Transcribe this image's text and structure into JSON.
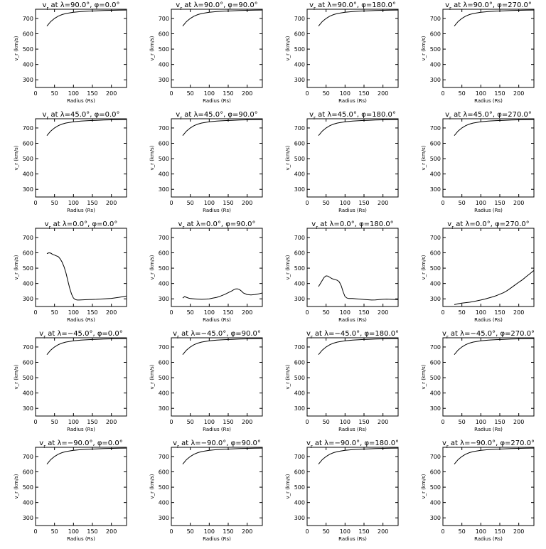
{
  "chart_data": [
    {
      "type": "line",
      "title": "v<sub>r</sub> at λ=90.0°, φ=0.0°",
      "title_parts": {
        "var": "v",
        "sub": "r",
        "rest": " at λ=90.0°, φ=0.0°"
      },
      "xlabel": "Radius (Rs)",
      "ylabel": "v_r (km/s)",
      "xlim": [
        0,
        240
      ],
      "ylim": [
        250,
        760
      ],
      "xticks": [
        0,
        50,
        100,
        150,
        200
      ],
      "yticks": [
        300,
        400,
        500,
        600,
        700
      ],
      "x": [
        30,
        40,
        50,
        60,
        70,
        80,
        100,
        120,
        140,
        160,
        180,
        200,
        220,
        240
      ],
      "y": [
        650,
        680,
        700,
        715,
        725,
        732,
        740,
        745,
        748,
        750,
        752,
        753,
        754,
        755
      ]
    },
    {
      "type": "line",
      "title_parts": {
        "var": "v",
        "sub": "r",
        "rest": " at λ=90.0°, φ=90.0°"
      },
      "xlabel": "Radius (Rs)",
      "ylabel": "v_r (km/s)",
      "xlim": [
        0,
        240
      ],
      "ylim": [
        250,
        760
      ],
      "xticks": [
        0,
        50,
        100,
        150,
        200
      ],
      "yticks": [
        300,
        400,
        500,
        600,
        700
      ],
      "x": [
        30,
        40,
        50,
        60,
        70,
        80,
        100,
        120,
        140,
        160,
        180,
        200,
        220,
        240
      ],
      "y": [
        650,
        680,
        700,
        715,
        725,
        732,
        740,
        745,
        748,
        750,
        752,
        753,
        754,
        755
      ]
    },
    {
      "type": "line",
      "title_parts": {
        "var": "v",
        "sub": "r",
        "rest": " at λ=90.0°, φ=180.0°"
      },
      "xlabel": "Radius (Rs)",
      "ylabel": "v_r (km/s)",
      "xlim": [
        0,
        240
      ],
      "ylim": [
        250,
        760
      ],
      "xticks": [
        0,
        50,
        100,
        150,
        200
      ],
      "yticks": [
        300,
        400,
        500,
        600,
        700
      ],
      "x": [
        30,
        40,
        50,
        60,
        70,
        80,
        100,
        120,
        140,
        160,
        180,
        200,
        220,
        240
      ],
      "y": [
        650,
        680,
        700,
        715,
        725,
        732,
        740,
        745,
        748,
        750,
        752,
        753,
        754,
        755
      ]
    },
    {
      "type": "line",
      "title_parts": {
        "var": "v",
        "sub": "r",
        "rest": " at λ=90.0°, φ=270.0°"
      },
      "xlabel": "Radius (Rs)",
      "ylabel": "v_r (km/s)",
      "xlim": [
        0,
        240
      ],
      "ylim": [
        250,
        760
      ],
      "xticks": [
        0,
        50,
        100,
        150,
        200
      ],
      "yticks": [
        300,
        400,
        500,
        600,
        700
      ],
      "x": [
        30,
        40,
        50,
        60,
        70,
        80,
        100,
        120,
        140,
        160,
        180,
        200,
        220,
        240
      ],
      "y": [
        650,
        680,
        700,
        715,
        725,
        732,
        740,
        745,
        748,
        750,
        752,
        753,
        754,
        755
      ]
    },
    {
      "type": "line",
      "title_parts": {
        "var": "v",
        "sub": "r",
        "rest": " at λ=45.0°, φ=0.0°"
      },
      "xlabel": "Radius (Rs)",
      "ylabel": "v_r (km/s)",
      "xlim": [
        0,
        240
      ],
      "ylim": [
        250,
        760
      ],
      "xticks": [
        0,
        50,
        100,
        150,
        200
      ],
      "yticks": [
        300,
        400,
        500,
        600,
        700
      ],
      "x": [
        30,
        40,
        50,
        60,
        70,
        80,
        100,
        120,
        140,
        160,
        180,
        200,
        220,
        240
      ],
      "y": [
        650,
        680,
        700,
        715,
        725,
        732,
        740,
        745,
        748,
        750,
        752,
        753,
        754,
        755
      ]
    },
    {
      "type": "line",
      "title_parts": {
        "var": "v",
        "sub": "r",
        "rest": " at λ=45.0°, φ=90.0°"
      },
      "xlabel": "Radius (Rs)",
      "ylabel": "v_r (km/s)",
      "xlim": [
        0,
        240
      ],
      "ylim": [
        250,
        760
      ],
      "xticks": [
        0,
        50,
        100,
        150,
        200
      ],
      "yticks": [
        300,
        400,
        500,
        600,
        700
      ],
      "x": [
        30,
        40,
        50,
        60,
        70,
        80,
        100,
        120,
        140,
        160,
        180,
        200,
        220,
        240
      ],
      "y": [
        650,
        680,
        700,
        715,
        725,
        732,
        740,
        745,
        748,
        750,
        752,
        753,
        754,
        755
      ]
    },
    {
      "type": "line",
      "title_parts": {
        "var": "v",
        "sub": "r",
        "rest": " at λ=45.0°, φ=180.0°"
      },
      "xlabel": "Radius (Rs)",
      "ylabel": "v_r (km/s)",
      "xlim": [
        0,
        240
      ],
      "ylim": [
        250,
        760
      ],
      "xticks": [
        0,
        50,
        100,
        150,
        200
      ],
      "yticks": [
        300,
        400,
        500,
        600,
        700
      ],
      "x": [
        30,
        40,
        50,
        60,
        70,
        80,
        100,
        120,
        140,
        160,
        180,
        200,
        220,
        240
      ],
      "y": [
        650,
        680,
        700,
        715,
        725,
        732,
        740,
        745,
        748,
        750,
        752,
        753,
        754,
        755
      ]
    },
    {
      "type": "line",
      "title_parts": {
        "var": "v",
        "sub": "r",
        "rest": " at λ=45.0°, φ=270.0°"
      },
      "xlabel": "Radius (Rs)",
      "ylabel": "v_r (km/s)",
      "xlim": [
        0,
        240
      ],
      "ylim": [
        250,
        760
      ],
      "xticks": [
        0,
        50,
        100,
        150,
        200
      ],
      "yticks": [
        300,
        400,
        500,
        600,
        700
      ],
      "x": [
        30,
        40,
        50,
        60,
        70,
        80,
        100,
        120,
        140,
        160,
        180,
        200,
        220,
        240
      ],
      "y": [
        650,
        680,
        700,
        715,
        725,
        732,
        740,
        745,
        748,
        750,
        752,
        753,
        754,
        755
      ]
    },
    {
      "type": "line",
      "title_parts": {
        "var": "v",
        "sub": "r",
        "rest": " at λ=0.0°, φ=0.0°"
      },
      "xlabel": "Radius (Rs)",
      "ylabel": "v_r (km/s)",
      "xlim": [
        0,
        240
      ],
      "ylim": [
        250,
        760
      ],
      "xticks": [
        0,
        50,
        100,
        150,
        200
      ],
      "yticks": [
        300,
        400,
        500,
        600,
        700
      ],
      "x": [
        30,
        35,
        40,
        45,
        50,
        55,
        60,
        65,
        70,
        75,
        80,
        85,
        90,
        95,
        100,
        105,
        110,
        115,
        120,
        130,
        140,
        160,
        180,
        200,
        220,
        240
      ],
      "y": [
        595,
        600,
        598,
        590,
        585,
        580,
        575,
        560,
        540,
        510,
        470,
        420,
        370,
        330,
        305,
        295,
        292,
        292,
        293,
        294,
        295,
        297,
        300,
        303,
        310,
        318
      ]
    },
    {
      "type": "line",
      "title_parts": {
        "var": "v",
        "sub": "r",
        "rest": " at λ=0.0°, φ=90.0°"
      },
      "xlabel": "Radius (Rs)",
      "ylabel": "v_r (km/s)",
      "xlim": [
        0,
        240
      ],
      "ylim": [
        250,
        760
      ],
      "xticks": [
        0,
        50,
        100,
        150,
        200
      ],
      "yticks": [
        300,
        400,
        500,
        600,
        700
      ],
      "x": [
        30,
        35,
        40,
        45,
        50,
        60,
        70,
        80,
        90,
        100,
        110,
        120,
        130,
        140,
        150,
        160,
        165,
        170,
        175,
        180,
        185,
        190,
        200,
        210,
        220,
        230,
        240
      ],
      "y": [
        305,
        315,
        310,
        305,
        302,
        300,
        298,
        297,
        298,
        300,
        305,
        310,
        318,
        328,
        340,
        352,
        360,
        365,
        365,
        360,
        350,
        338,
        328,
        325,
        328,
        332,
        338
      ]
    },
    {
      "type": "line",
      "title_parts": {
        "var": "v",
        "sub": "r",
        "rest": " at λ=0.0°, φ=180.0°"
      },
      "xlabel": "Radius (Rs)",
      "ylabel": "v_r (km/s)",
      "xlim": [
        0,
        240
      ],
      "ylim": [
        250,
        760
      ],
      "xticks": [
        0,
        50,
        100,
        150,
        200
      ],
      "yticks": [
        300,
        400,
        500,
        600,
        700
      ],
      "x": [
        30,
        35,
        40,
        45,
        50,
        55,
        60,
        65,
        70,
        75,
        80,
        85,
        90,
        95,
        100,
        105,
        110,
        120,
        130,
        140,
        150,
        160,
        170,
        180,
        190,
        200,
        210,
        220,
        230,
        240
      ],
      "y": [
        380,
        400,
        420,
        440,
        450,
        448,
        440,
        432,
        428,
        425,
        420,
        410,
        385,
        345,
        315,
        305,
        302,
        302,
        300,
        298,
        296,
        294,
        292,
        293,
        295,
        297,
        298,
        297,
        296,
        295
      ]
    },
    {
      "type": "line",
      "title_parts": {
        "var": "v",
        "sub": "r",
        "rest": " at λ=0.0°, φ=270.0°"
      },
      "xlabel": "Radius (Rs)",
      "ylabel": "v_r (km/s)",
      "xlim": [
        0,
        240
      ],
      "ylim": [
        250,
        760
      ],
      "xticks": [
        0,
        50,
        100,
        150,
        200
      ],
      "yticks": [
        300,
        400,
        500,
        600,
        700
      ],
      "x": [
        30,
        40,
        50,
        60,
        70,
        80,
        90,
        100,
        110,
        120,
        130,
        140,
        150,
        160,
        170,
        180,
        190,
        200,
        210,
        220,
        230,
        240
      ],
      "y": [
        262,
        268,
        272,
        275,
        278,
        282,
        287,
        292,
        298,
        305,
        312,
        320,
        330,
        340,
        355,
        372,
        390,
        408,
        425,
        445,
        465,
        485
      ]
    },
    {
      "type": "line",
      "title_parts": {
        "var": "v",
        "sub": "r",
        "rest": " at λ=−45.0°, φ=0.0°"
      },
      "xlabel": "Radius (Rs)",
      "ylabel": "v_r (km/s)",
      "xlim": [
        0,
        240
      ],
      "ylim": [
        250,
        760
      ],
      "xticks": [
        0,
        50,
        100,
        150,
        200
      ],
      "yticks": [
        300,
        400,
        500,
        600,
        700
      ],
      "x": [
        30,
        40,
        50,
        60,
        70,
        80,
        100,
        120,
        140,
        160,
        180,
        200,
        220,
        240
      ],
      "y": [
        650,
        680,
        700,
        715,
        725,
        732,
        740,
        745,
        748,
        750,
        752,
        753,
        754,
        755
      ]
    },
    {
      "type": "line",
      "title_parts": {
        "var": "v",
        "sub": "r",
        "rest": " at λ=−45.0°, φ=90.0°"
      },
      "xlabel": "Radius (Rs)",
      "ylabel": "v_r (km/s)",
      "xlim": [
        0,
        240
      ],
      "ylim": [
        250,
        760
      ],
      "xticks": [
        0,
        50,
        100,
        150,
        200
      ],
      "yticks": [
        300,
        400,
        500,
        600,
        700
      ],
      "x": [
        30,
        40,
        50,
        60,
        70,
        80,
        100,
        120,
        140,
        160,
        180,
        200,
        220,
        240
      ],
      "y": [
        650,
        680,
        700,
        715,
        725,
        732,
        740,
        745,
        748,
        750,
        752,
        753,
        754,
        755
      ]
    },
    {
      "type": "line",
      "title_parts": {
        "var": "v",
        "sub": "r",
        "rest": " at λ=−45.0°, φ=180.0°"
      },
      "xlabel": "Radius (Rs)",
      "ylabel": "v_r (km/s)",
      "xlim": [
        0,
        240
      ],
      "ylim": [
        250,
        760
      ],
      "xticks": [
        0,
        50,
        100,
        150,
        200
      ],
      "yticks": [
        300,
        400,
        500,
        600,
        700
      ],
      "x": [
        30,
        40,
        50,
        60,
        70,
        80,
        100,
        120,
        140,
        160,
        180,
        200,
        220,
        240
      ],
      "y": [
        650,
        680,
        700,
        715,
        725,
        732,
        740,
        745,
        748,
        750,
        752,
        753,
        754,
        755
      ]
    },
    {
      "type": "line",
      "title_parts": {
        "var": "v",
        "sub": "r",
        "rest": " at λ=−45.0°, φ=270.0°"
      },
      "xlabel": "Radius (Rs)",
      "ylabel": "v_r (km/s)",
      "xlim": [
        0,
        240
      ],
      "ylim": [
        250,
        760
      ],
      "xticks": [
        0,
        50,
        100,
        150,
        200
      ],
      "yticks": [
        300,
        400,
        500,
        600,
        700
      ],
      "x": [
        30,
        40,
        50,
        60,
        70,
        80,
        100,
        120,
        140,
        160,
        180,
        200,
        220,
        240
      ],
      "y": [
        650,
        680,
        700,
        715,
        725,
        732,
        740,
        745,
        748,
        750,
        752,
        753,
        754,
        755
      ]
    },
    {
      "type": "line",
      "title_parts": {
        "var": "v",
        "sub": "r",
        "rest": " at λ=−90.0°, φ=0.0°"
      },
      "xlabel": "Radius (Rs)",
      "ylabel": "v_r (km/s)",
      "xlim": [
        0,
        240
      ],
      "ylim": [
        250,
        760
      ],
      "xticks": [
        0,
        50,
        100,
        150,
        200
      ],
      "yticks": [
        300,
        400,
        500,
        600,
        700
      ],
      "x": [
        30,
        40,
        50,
        60,
        70,
        80,
        100,
        120,
        140,
        160,
        180,
        200,
        220,
        240
      ],
      "y": [
        650,
        680,
        700,
        715,
        725,
        732,
        740,
        745,
        748,
        750,
        752,
        753,
        754,
        755
      ]
    },
    {
      "type": "line",
      "title_parts": {
        "var": "v",
        "sub": "r",
        "rest": " at λ=−90.0°, φ=90.0°"
      },
      "xlabel": "Radius (Rs)",
      "ylabel": "v_r (km/s)",
      "xlim": [
        0,
        240
      ],
      "ylim": [
        250,
        760
      ],
      "xticks": [
        0,
        50,
        100,
        150,
        200
      ],
      "yticks": [
        300,
        400,
        500,
        600,
        700
      ],
      "x": [
        30,
        40,
        50,
        60,
        70,
        80,
        100,
        120,
        140,
        160,
        180,
        200,
        220,
        240
      ],
      "y": [
        650,
        680,
        700,
        715,
        725,
        732,
        740,
        745,
        748,
        750,
        752,
        753,
        754,
        755
      ]
    },
    {
      "type": "line",
      "title_parts": {
        "var": "v",
        "sub": "r",
        "rest": " at λ=−90.0°, φ=180.0°"
      },
      "xlabel": "Radius (Rs)",
      "ylabel": "v_r (km/s)",
      "xlim": [
        0,
        240
      ],
      "ylim": [
        250,
        760
      ],
      "xticks": [
        0,
        50,
        100,
        150,
        200
      ],
      "yticks": [
        300,
        400,
        500,
        600,
        700
      ],
      "x": [
        30,
        40,
        50,
        60,
        70,
        80,
        100,
        120,
        140,
        160,
        180,
        200,
        220,
        240
      ],
      "y": [
        650,
        680,
        700,
        715,
        725,
        732,
        740,
        745,
        748,
        750,
        752,
        753,
        754,
        755
      ]
    },
    {
      "type": "line",
      "title_parts": {
        "var": "v",
        "sub": "r",
        "rest": " at λ=−90.0°, φ=270.0°"
      },
      "xlabel": "Radius (Rs)",
      "ylabel": "v_r (km/s)",
      "xlim": [
        0,
        240
      ],
      "ylim": [
        250,
        760
      ],
      "xticks": [
        0,
        50,
        100,
        150,
        200
      ],
      "yticks": [
        300,
        400,
        500,
        600,
        700
      ],
      "x": [
        30,
        40,
        50,
        60,
        70,
        80,
        100,
        120,
        140,
        160,
        180,
        200,
        220,
        240
      ],
      "y": [
        650,
        680,
        700,
        715,
        725,
        732,
        740,
        745,
        748,
        750,
        752,
        753,
        754,
        755
      ]
    }
  ]
}
